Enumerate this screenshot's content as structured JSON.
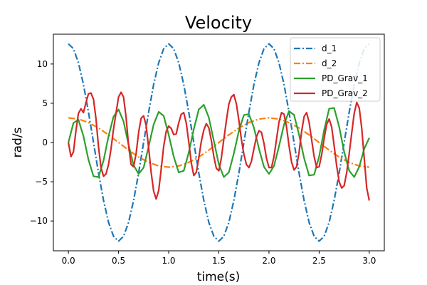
{
  "chart_data": {
    "type": "line",
    "title": "Velocity",
    "xlabel": "time(s)",
    "ylabel": "rad/s",
    "xlim": [
      -0.15,
      3.15
    ],
    "ylim": [
      -13.8,
      13.8
    ],
    "xticks": [
      0.0,
      0.5,
      1.0,
      1.5,
      2.0,
      2.5,
      3.0
    ],
    "xtick_labels": [
      "0.0",
      "0.5",
      "1.0",
      "1.5",
      "2.0",
      "2.5",
      "3.0"
    ],
    "yticks": [
      -10,
      -5,
      0,
      5,
      10
    ],
    "ytick_labels": [
      "−10",
      "−5",
      "0",
      "5",
      "10"
    ],
    "legend_position": "top-right",
    "grid": false,
    "series": [
      {
        "name": "d_1",
        "color": "#1f77b4",
        "linestyle": "dashdot",
        "x": [
          0.0,
          0.05,
          0.1,
          0.15,
          0.2,
          0.25,
          0.3,
          0.35,
          0.4,
          0.45,
          0.5,
          0.55,
          0.6,
          0.65,
          0.7,
          0.75,
          0.8,
          0.85,
          0.9,
          0.95,
          1.0,
          1.05,
          1.1,
          1.15,
          1.2,
          1.25,
          1.3,
          1.35,
          1.4,
          1.45,
          1.5,
          1.55,
          1.6,
          1.65,
          1.7,
          1.75,
          1.8,
          1.85,
          1.9,
          1.95,
          2.0,
          2.05,
          2.1,
          2.15,
          2.2,
          2.25,
          2.3,
          2.35,
          2.4,
          2.45,
          2.5,
          2.55,
          2.6,
          2.65,
          2.7,
          2.75,
          2.8,
          2.85,
          2.9,
          2.95,
          3.0
        ],
        "y": [
          12.57,
          11.95,
          10.17,
          7.39,
          3.88,
          0.0,
          -3.88,
          -7.39,
          -10.17,
          -11.95,
          -12.57,
          -11.95,
          -10.17,
          -7.39,
          -3.88,
          0.0,
          3.88,
          7.39,
          10.17,
          11.95,
          12.57,
          11.95,
          10.17,
          7.39,
          3.88,
          0.0,
          -3.88,
          -7.39,
          -10.17,
          -11.95,
          -12.57,
          -11.95,
          -10.17,
          -7.39,
          -3.88,
          0.0,
          3.88,
          7.39,
          10.17,
          11.95,
          12.57,
          11.95,
          10.17,
          7.39,
          3.88,
          0.0,
          -3.88,
          -7.39,
          -10.17,
          -11.95,
          -12.57,
          -11.95,
          -10.17,
          -7.39,
          -3.88,
          0.0,
          3.88,
          7.39,
          10.17,
          11.95,
          12.57
        ]
      },
      {
        "name": "d_2",
        "color": "#ff7f0e",
        "linestyle": "dashdot",
        "x": [
          0.0,
          0.1,
          0.2,
          0.3,
          0.4,
          0.5,
          0.6,
          0.7,
          0.8,
          0.9,
          1.0,
          1.1,
          1.2,
          1.3,
          1.4,
          1.5,
          1.6,
          1.7,
          1.8,
          1.9,
          2.0,
          2.1,
          2.2,
          2.3,
          2.4,
          2.5,
          2.6,
          2.7,
          2.8,
          2.9,
          3.0
        ],
        "y": [
          3.14,
          2.99,
          2.54,
          1.85,
          0.97,
          0.0,
          -0.97,
          -1.85,
          -2.54,
          -2.99,
          -3.14,
          -2.99,
          -2.54,
          -1.85,
          -0.97,
          0.0,
          0.97,
          1.85,
          2.54,
          2.99,
          3.14,
          2.99,
          2.54,
          1.85,
          0.97,
          0.0,
          -0.97,
          -1.85,
          -2.54,
          -2.99,
          -3.14
        ]
      },
      {
        "name": "PD_Grav_1",
        "color": "#2ca02c",
        "linestyle": "solid",
        "x": [
          0.0,
          0.05,
          0.1,
          0.15,
          0.2,
          0.25,
          0.3,
          0.35,
          0.4,
          0.45,
          0.5,
          0.55,
          0.6,
          0.65,
          0.7,
          0.75,
          0.8,
          0.85,
          0.9,
          0.95,
          1.0,
          1.05,
          1.1,
          1.15,
          1.2,
          1.25,
          1.3,
          1.35,
          1.4,
          1.45,
          1.5,
          1.55,
          1.6,
          1.65,
          1.7,
          1.75,
          1.8,
          1.85,
          1.9,
          1.95,
          2.0,
          2.05,
          2.1,
          2.15,
          2.2,
          2.25,
          2.3,
          2.35,
          2.4,
          2.45,
          2.5,
          2.55,
          2.6,
          2.65,
          2.7,
          2.75,
          2.8,
          2.85,
          2.9,
          2.95,
          3.0
        ],
        "y": [
          0.0,
          2.5,
          2.9,
          0.8,
          -2.2,
          -4.3,
          -4.4,
          -2.3,
          0.8,
          3.3,
          4.2,
          2.7,
          -0.3,
          -2.9,
          -4.0,
          -3.2,
          -0.5,
          2.3,
          3.9,
          3.4,
          1.0,
          -1.8,
          -3.8,
          -3.6,
          -1.3,
          1.7,
          4.2,
          4.8,
          3.2,
          0.2,
          -2.8,
          -4.4,
          -3.8,
          -1.4,
          1.5,
          3.5,
          3.6,
          1.9,
          -0.8,
          -3.1,
          -4.0,
          -3.0,
          -0.5,
          2.3,
          4.0,
          3.5,
          1.0,
          -2.0,
          -4.2,
          -4.1,
          -1.8,
          1.6,
          4.3,
          4.4,
          2.0,
          -1.2,
          -3.6,
          -4.4,
          -3.1,
          -0.8,
          0.6
        ]
      },
      {
        "name": "PD_Grav_2",
        "color": "#d62728",
        "linestyle": "solid",
        "x": [
          0.0,
          0.025,
          0.05,
          0.075,
          0.1,
          0.125,
          0.15,
          0.175,
          0.2,
          0.225,
          0.25,
          0.275,
          0.3,
          0.325,
          0.35,
          0.375,
          0.4,
          0.425,
          0.45,
          0.475,
          0.5,
          0.525,
          0.55,
          0.575,
          0.6,
          0.625,
          0.65,
          0.675,
          0.7,
          0.725,
          0.75,
          0.775,
          0.8,
          0.825,
          0.85,
          0.875,
          0.9,
          0.925,
          0.95,
          0.975,
          1.0,
          1.025,
          1.05,
          1.075,
          1.1,
          1.125,
          1.15,
          1.175,
          1.2,
          1.225,
          1.25,
          1.275,
          1.3,
          1.325,
          1.35,
          1.375,
          1.4,
          1.425,
          1.45,
          1.475,
          1.5,
          1.525,
          1.55,
          1.575,
          1.6,
          1.625,
          1.65,
          1.675,
          1.7,
          1.725,
          1.75,
          1.775,
          1.8,
          1.825,
          1.85,
          1.875,
          1.9,
          1.925,
          1.95,
          1.975,
          2.0,
          2.025,
          2.05,
          2.075,
          2.1,
          2.125,
          2.15,
          2.175,
          2.2,
          2.225,
          2.25,
          2.275,
          2.3,
          2.325,
          2.35,
          2.375,
          2.4,
          2.425,
          2.45,
          2.475,
          2.5,
          2.525,
          2.55,
          2.575,
          2.6,
          2.625,
          2.65,
          2.675,
          2.7,
          2.725,
          2.75,
          2.775,
          2.8,
          2.825,
          2.85,
          2.875,
          2.9,
          2.925,
          2.95,
          2.975,
          3.0
        ],
        "y": [
          0.0,
          -1.8,
          -1.2,
          1.5,
          3.7,
          4.3,
          3.8,
          5.1,
          6.2,
          6.3,
          5.5,
          3.0,
          -0.5,
          -3.2,
          -4.3,
          -4.0,
          -2.8,
          -0.8,
          1.7,
          3.8,
          5.8,
          6.4,
          5.8,
          3.2,
          -0.4,
          -2.8,
          -3.1,
          -1.4,
          1.3,
          3.1,
          3.4,
          2.2,
          -0.7,
          -3.8,
          -6.2,
          -7.2,
          -6.1,
          -3.4,
          -0.5,
          1.4,
          2.1,
          1.8,
          1.0,
          1.1,
          2.5,
          3.6,
          3.8,
          2.5,
          0.1,
          -2.6,
          -4.2,
          -3.8,
          -2.0,
          0.1,
          1.6,
          2.4,
          1.9,
          0.3,
          -1.8,
          -3.3,
          -3.6,
          -2.0,
          0.4,
          2.8,
          4.9,
          5.8,
          6.1,
          4.9,
          2.8,
          0.4,
          -1.5,
          -2.8,
          -3.2,
          -2.4,
          -0.8,
          0.7,
          1.5,
          1.3,
          -0.1,
          -2.0,
          -3.2,
          -3.2,
          -1.8,
          0.4,
          2.6,
          3.8,
          3.6,
          2.0,
          -0.4,
          -2.5,
          -3.5,
          -3.1,
          -1.3,
          1.4,
          3.3,
          3.8,
          2.6,
          0.4,
          -1.8,
          -3.2,
          -3.1,
          -1.6,
          0.5,
          2.3,
          3.0,
          2.0,
          -0.4,
          -3.0,
          -5.0,
          -5.8,
          -5.5,
          -3.8,
          -1.4,
          1.2,
          3.7,
          5.1,
          4.4,
          1.8,
          -2.0,
          -5.8,
          -7.4
        ]
      }
    ]
  }
}
